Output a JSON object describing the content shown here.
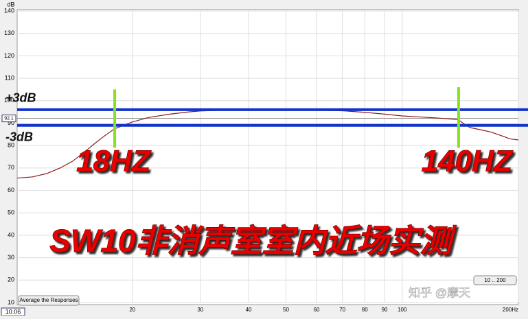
{
  "chart_data": {
    "type": "line",
    "y_unit": "dB",
    "log_x": true,
    "grid": true,
    "xlim": [
      10.06,
      200
    ],
    "ylim": [
      10,
      140
    ],
    "xticks": [
      20,
      30,
      40,
      50,
      60,
      70,
      80,
      90,
      100,
      {
        "value": 200,
        "label": "200Hz"
      }
    ],
    "yticks": [
      10,
      20,
      30,
      40,
      50,
      60,
      70,
      80,
      90,
      100,
      110,
      120,
      130,
      140
    ],
    "x": [
      10.06,
      11,
      12,
      13,
      14,
      15,
      16,
      17,
      18,
      20,
      22,
      25,
      28,
      30,
      35,
      40,
      45,
      50,
      55,
      60,
      70,
      80,
      90,
      100,
      110,
      120,
      130,
      140,
      145,
      150,
      160,
      170,
      180,
      190,
      200
    ],
    "series": [
      {
        "color": "#8b1a1a",
        "values": [
          65.5,
          66,
          67.5,
          70,
          73,
          77,
          81,
          84.5,
          87.5,
          90.5,
          92.5,
          94,
          95,
          95.4,
          95.8,
          96,
          96.3,
          95.8,
          96,
          95.7,
          95.5,
          94.8,
          94,
          93.2,
          92.8,
          92.4,
          92,
          91.5,
          89.5,
          88,
          87,
          86,
          84.5,
          83,
          82.5
        ]
      }
    ],
    "reference_lines": [
      {
        "value": 96,
        "label": "+3dB",
        "color": "#1133cc"
      },
      {
        "value": 89,
        "label": "-3dB",
        "color": "#1133cc"
      }
    ],
    "markers": [
      {
        "x": 18,
        "span": [
          79,
          105
        ],
        "label": "18HZ",
        "color": "#88e022"
      },
      {
        "x": 140,
        "span": [
          79,
          106
        ],
        "label": "140HZ",
        "color": "#88e022"
      }
    ],
    "cursor_value": 92.1,
    "title": "SW10非消声室室内近场实测",
    "button": "Average the Responses",
    "range_button": "10 .. 200",
    "watermark": "知乎 @摩天"
  }
}
